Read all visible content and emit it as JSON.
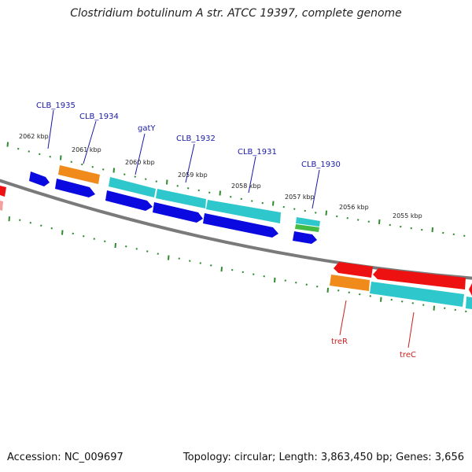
{
  "title": "Clostridium botulinum A str. ATCC 19397, complete genome",
  "footer": {
    "accession": "Accession: NC_009697",
    "summary": "Topology: circular; Length: 3,863,450 bp; Genes: 3,656"
  },
  "scale_labels": [
    "2062 kbp",
    "2061 kbp",
    "2060 kbp",
    "2059 kbp",
    "2058 kbp",
    "2057 kbp",
    "2056 kbp",
    "2055 kbp"
  ],
  "gene_labels_forward": [
    "CLB_1935",
    "CLB_1934",
    "gatY",
    "CLB_1932",
    "CLB_1931",
    "CLB_1930"
  ],
  "gene_labels_reverse": [
    "treR",
    "treC"
  ],
  "colors": {
    "label_forward": "#1a1aa6",
    "label_reverse": "#cc1f1f",
    "tick": "#2e8b2e",
    "backbone": "#7a7a7a",
    "cds_blue": "#0a0ae0",
    "cds_cyan": "#2ec8cc",
    "cds_orange": "#f08a1a",
    "cds_red": "#ee1111",
    "cds_green": "#44bb44"
  }
}
